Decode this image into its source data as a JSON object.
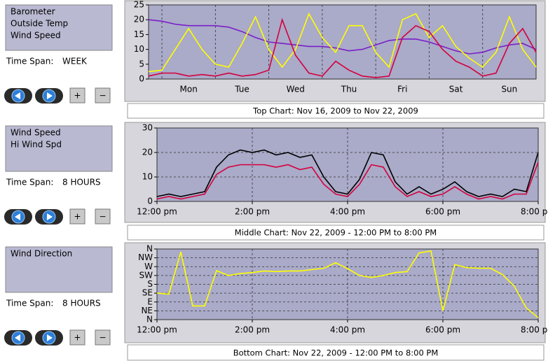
{
  "panels": [
    {
      "time_span_label": "Time Span:",
      "time_span": "WEEK",
      "zoom_in": "+",
      "zoom_out": "−"
    },
    {
      "time_span_label": "Time Span:",
      "time_span": "8 HOURS",
      "zoom_in": "+",
      "zoom_out": "−"
    },
    {
      "time_span_label": "Time Span:",
      "time_span": "8 HOURS",
      "zoom_in": "+",
      "zoom_out": "−"
    }
  ],
  "chart_data": [
    {
      "type": "line",
      "title": "Top Chart:  Nov 16, 2009  to  Nov 22, 2009",
      "x": [
        -0.25,
        0,
        0.25,
        0.5,
        0.75,
        1,
        1.25,
        1.5,
        1.75,
        2,
        2.25,
        2.5,
        2.75,
        3,
        3.25,
        3.5,
        3.75,
        4,
        4.25,
        4.5,
        4.75,
        5,
        5.25,
        5.5,
        5.75,
        6,
        6.25,
        6.5,
        6.75,
        7
      ],
      "xlim": [
        -0.25,
        7
      ],
      "xticks": [
        {
          "value": 0.5,
          "label": "Mon"
        },
        {
          "value": 1.5,
          "label": "Tue"
        },
        {
          "value": 2.5,
          "label": "Wed"
        },
        {
          "value": 3.5,
          "label": "Thu"
        },
        {
          "value": 4.5,
          "label": "Fri"
        },
        {
          "value": 5.5,
          "label": "Sat"
        },
        {
          "value": 6.5,
          "label": "Sun"
        }
      ],
      "ylim": [
        0,
        25
      ],
      "yticks": [
        0,
        5,
        10,
        15,
        20,
        25
      ],
      "grid": false,
      "series": [
        {
          "name": "Barometer",
          "color": "#7a1fc8",
          "values": [
            20,
            19.5,
            18.5,
            18,
            18,
            18,
            17.5,
            16,
            14,
            12.5,
            12,
            11.5,
            11,
            11,
            10.5,
            9.5,
            10,
            11.5,
            13,
            13.5,
            13.5,
            12.5,
            11,
            9.5,
            8.5,
            9,
            10.5,
            11.5,
            12,
            10
          ]
        },
        {
          "name": "Outside Temp",
          "color": "#ffff00",
          "values": [
            2.5,
            3,
            10,
            17,
            10,
            5,
            4,
            12,
            21,
            10,
            4,
            10,
            22,
            14,
            9,
            18,
            18,
            9,
            4,
            20,
            22,
            14,
            18,
            11,
            7,
            4,
            9,
            21,
            10,
            4
          ]
        },
        {
          "name": "Wind Speed",
          "color": "#d4003c",
          "values": [
            1,
            2,
            2,
            1,
            1.5,
            1,
            2,
            1,
            1.5,
            3,
            20,
            8,
            2,
            1,
            6,
            3,
            1,
            0.5,
            1,
            14,
            18,
            16,
            10,
            6,
            4,
            1,
            2,
            12,
            17,
            9
          ]
        }
      ]
    },
    {
      "type": "line",
      "title": "Middle Chart:  Nov 22, 2009 - 12:00 PM  to  8:00 PM",
      "x": [
        12,
        12.25,
        12.5,
        12.75,
        13,
        13.25,
        13.5,
        13.75,
        14,
        14.25,
        14.5,
        14.75,
        15,
        15.25,
        15.5,
        15.75,
        16,
        16.25,
        16.5,
        16.75,
        17,
        17.25,
        17.5,
        17.75,
        18,
        18.25,
        18.5,
        18.75,
        19,
        19.25,
        19.5,
        19.75,
        20
      ],
      "xlim": [
        12,
        20
      ],
      "xticks": [
        {
          "value": 12,
          "label": "12:00 pm"
        },
        {
          "value": 14,
          "label": "2:00 pm"
        },
        {
          "value": 16,
          "label": "4:00 pm"
        },
        {
          "value": 18,
          "label": "6:00 pm"
        },
        {
          "value": 20,
          "label": "8:00 pm"
        }
      ],
      "ylim": [
        0,
        30
      ],
      "yticks": [
        0,
        10,
        20,
        30
      ],
      "grid": true,
      "series": [
        {
          "name": "Wind Speed",
          "color": "#d4003c",
          "values": [
            1,
            2,
            1,
            2,
            3,
            11,
            14,
            15,
            15,
            15,
            14,
            15,
            13,
            14,
            7,
            3,
            2,
            7,
            15,
            14,
            6,
            2,
            4,
            2,
            3,
            6,
            3,
            1,
            2,
            1,
            3,
            3,
            16
          ]
        },
        {
          "name": "Hi Wind Spd",
          "color": "#000000",
          "values": [
            2,
            3,
            2,
            3,
            4,
            14,
            19,
            21,
            20,
            21,
            19,
            20,
            18,
            19,
            10,
            4,
            3,
            9,
            20,
            19,
            8,
            3,
            6,
            3,
            5,
            8,
            4,
            2,
            3,
            2,
            5,
            4,
            20
          ]
        }
      ]
    },
    {
      "type": "line",
      "title": "Bottom Chart:  Nov 22, 2009 - 12:00 PM  to  8:00 PM",
      "x": [
        12,
        12.25,
        12.5,
        12.75,
        13,
        13.25,
        13.5,
        13.75,
        14,
        14.25,
        14.5,
        14.75,
        15,
        15.25,
        15.5,
        15.75,
        16,
        16.25,
        16.5,
        16.75,
        17,
        17.25,
        17.5,
        17.75,
        18,
        18.25,
        18.5,
        18.75,
        19,
        19.25,
        19.5,
        19.75,
        20
      ],
      "xlim": [
        12,
        20
      ],
      "xticks": [
        {
          "value": 12,
          "label": "12:00 pm"
        },
        {
          "value": 14,
          "label": "2:00 pm"
        },
        {
          "value": 16,
          "label": "4:00 pm"
        },
        {
          "value": 18,
          "label": "6:00 pm"
        },
        {
          "value": 20,
          "label": "8:00 pm"
        }
      ],
      "ylim": [
        0,
        360
      ],
      "yticks": [
        {
          "value": 0,
          "label": "N"
        },
        {
          "value": 45,
          "label": "NE"
        },
        {
          "value": 90,
          "label": "E"
        },
        {
          "value": 135,
          "label": "SE"
        },
        {
          "value": 180,
          "label": "S"
        },
        {
          "value": 225,
          "label": "SW"
        },
        {
          "value": 270,
          "label": "W"
        },
        {
          "value": 315,
          "label": "NW"
        },
        {
          "value": 360,
          "label": "N"
        }
      ],
      "grid": true,
      "series": [
        {
          "name": "Wind Direction",
          "color": "#ffff00",
          "values": [
            135,
            130,
            345,
            70,
            70,
            250,
            225,
            235,
            240,
            248,
            245,
            248,
            248,
            255,
            262,
            290,
            260,
            225,
            215,
            225,
            240,
            245,
            340,
            350,
            45,
            280,
            265,
            262,
            262,
            230,
            170,
            60,
            10
          ]
        }
      ]
    }
  ]
}
